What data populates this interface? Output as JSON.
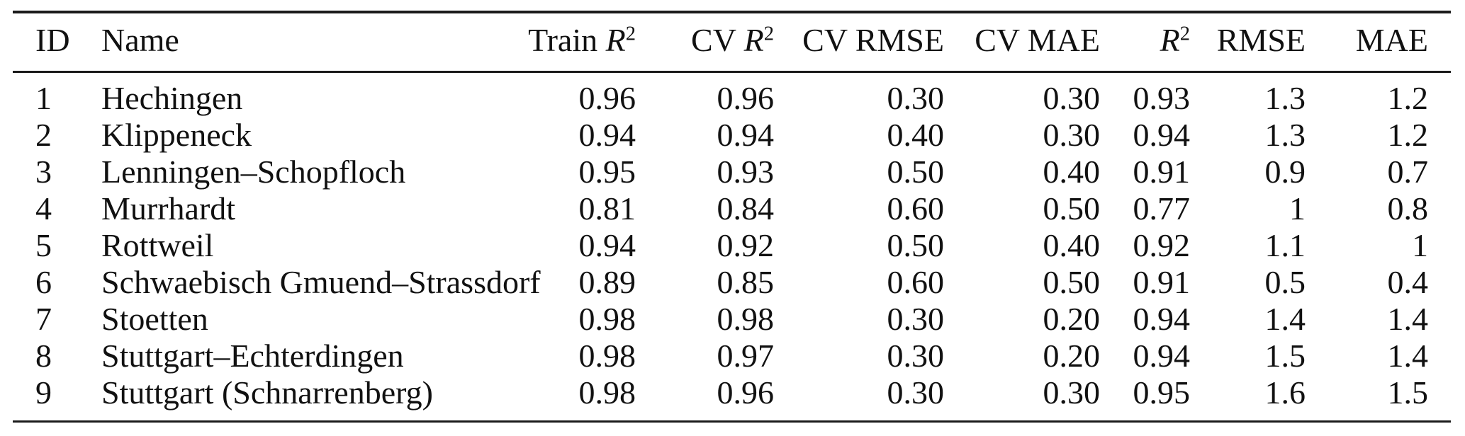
{
  "page": {
    "background": "#ffffff",
    "text_color": "#111111",
    "rule_color": "#1a1a1a"
  },
  "table": {
    "columns": [
      {
        "key": "id",
        "label": "ID",
        "align": "left"
      },
      {
        "key": "name",
        "label": "Name",
        "align": "left"
      },
      {
        "key": "train-r2",
        "label": "Train R^2",
        "align": "right"
      },
      {
        "key": "cv-r2",
        "label": "CV R^2",
        "align": "right"
      },
      {
        "key": "cv-rmse",
        "label": "CV RMSE",
        "align": "right"
      },
      {
        "key": "cv-mae",
        "label": "CV MAE",
        "align": "right"
      },
      {
        "key": "r2",
        "label": "R^2",
        "align": "right"
      },
      {
        "key": "rmse",
        "label": "RMSE",
        "align": "right"
      },
      {
        "key": "mae",
        "label": "MAE",
        "align": "right"
      }
    ],
    "rows": [
      [
        "1",
        "Hechingen",
        "0.96",
        "0.96",
        "0.30",
        "0.30",
        "0.93",
        "1.3",
        "1.2"
      ],
      [
        "2",
        "Klippeneck",
        "0.94",
        "0.94",
        "0.40",
        "0.30",
        "0.94",
        "1.3",
        "1.2"
      ],
      [
        "3",
        "Lenningen–Schopfloch",
        "0.95",
        "0.93",
        "0.50",
        "0.40",
        "0.91",
        "0.9",
        "0.7"
      ],
      [
        "4",
        "Murrhardt",
        "0.81",
        "0.84",
        "0.60",
        "0.50",
        "0.77",
        "1",
        "0.8"
      ],
      [
        "5",
        "Rottweil",
        "0.94",
        "0.92",
        "0.50",
        "0.40",
        "0.92",
        "1.1",
        "1"
      ],
      [
        "6",
        "Schwaebisch Gmuend–Strassdorf",
        "0.89",
        "0.85",
        "0.60",
        "0.50",
        "0.91",
        "0.5",
        "0.4"
      ],
      [
        "7",
        "Stoetten",
        "0.98",
        "0.98",
        "0.30",
        "0.20",
        "0.94",
        "1.4",
        "1.4"
      ],
      [
        "8",
        "Stuttgart–Echterdingen",
        "0.98",
        "0.97",
        "0.30",
        "0.20",
        "0.94",
        "1.5",
        "1.4"
      ],
      [
        "9",
        "Stuttgart (Schnarrenberg)",
        "0.98",
        "0.96",
        "0.30",
        "0.30",
        "0.95",
        "1.6",
        "1.5"
      ]
    ]
  }
}
